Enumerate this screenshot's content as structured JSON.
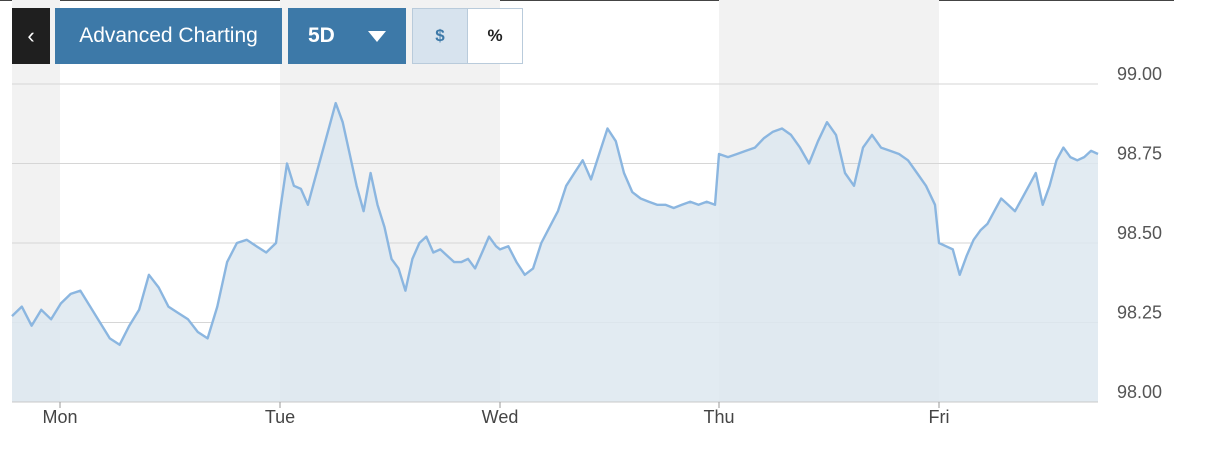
{
  "toolbar": {
    "back_icon": "chevron-left-icon",
    "advanced_label": "Advanced Charting",
    "period_label": "5D",
    "period_icon": "caret-down-icon",
    "currency_label": "$",
    "percent_label": "%"
  },
  "colors": {
    "line": "#8bb6e0",
    "area": "#dde8f0",
    "band": "#f2f2f2",
    "grid": "#d6d6d6",
    "button": "#3d79a8"
  },
  "chart_data": {
    "type": "area",
    "x_axis": {
      "tick_labels": [
        "Mon",
        "Tue",
        "Wed",
        "Thu",
        "Fri"
      ]
    },
    "y_axis": {
      "tick_labels": [
        "99.00",
        "98.75",
        "98.50",
        "98.25",
        "98.00"
      ],
      "ticks": [
        99.0,
        98.75,
        98.5,
        98.25,
        98.0
      ],
      "range": [
        98.0,
        99.0
      ],
      "position": "right"
    },
    "grid": true,
    "legend": "none",
    "sessions": [
      {
        "day": "Mon",
        "values": [
          98.27,
          98.3,
          98.24,
          98.29,
          98.26,
          98.31,
          98.34,
          98.35,
          98.3,
          98.25,
          98.2,
          98.18,
          98.24,
          98.29,
          98.4,
          98.36,
          98.3,
          98.28,
          98.26,
          98.22,
          98.2,
          98.3,
          98.44,
          98.5,
          98.51,
          98.49,
          98.47,
          98.5
        ]
      },
      {
        "day": "Tue",
        "values": [
          98.6,
          98.75,
          98.68,
          98.67,
          98.62,
          98.7,
          98.78,
          98.86,
          98.94,
          98.88,
          98.78,
          98.68,
          98.6,
          98.72,
          98.62,
          98.55,
          98.45,
          98.42,
          98.35,
          98.45,
          98.5,
          98.52,
          98.47,
          98.48,
          98.46,
          98.44,
          98.44,
          98.45,
          98.42,
          98.47,
          98.52,
          98.49
        ]
      },
      {
        "day": "Wed",
        "values": [
          98.48,
          98.49,
          98.44,
          98.4,
          98.42,
          98.5,
          98.55,
          98.6,
          98.68,
          98.72,
          98.76,
          98.7,
          98.78,
          98.86,
          98.82,
          98.72,
          98.66,
          98.64,
          98.63,
          98.62,
          98.62,
          98.61,
          98.62,
          98.63,
          98.62,
          98.63,
          98.62
        ]
      },
      {
        "day": "Thu",
        "values": [
          98.78,
          98.77,
          98.78,
          98.79,
          98.8,
          98.83,
          98.85,
          98.86,
          98.84,
          98.8,
          98.75,
          98.82,
          98.88,
          98.84,
          98.72,
          98.68,
          98.8,
          98.84,
          98.8,
          98.79,
          98.78,
          98.76,
          98.72,
          98.68,
          98.62
        ]
      },
      {
        "day": "Fri",
        "values": [
          98.5,
          98.49,
          98.48,
          98.4,
          98.46,
          98.51,
          98.54,
          98.56,
          98.6,
          98.64,
          98.62,
          98.6,
          98.64,
          98.68,
          98.72,
          98.62,
          98.68,
          98.76,
          98.8,
          98.77,
          98.76,
          98.77,
          98.79,
          98.78
        ]
      }
    ]
  }
}
